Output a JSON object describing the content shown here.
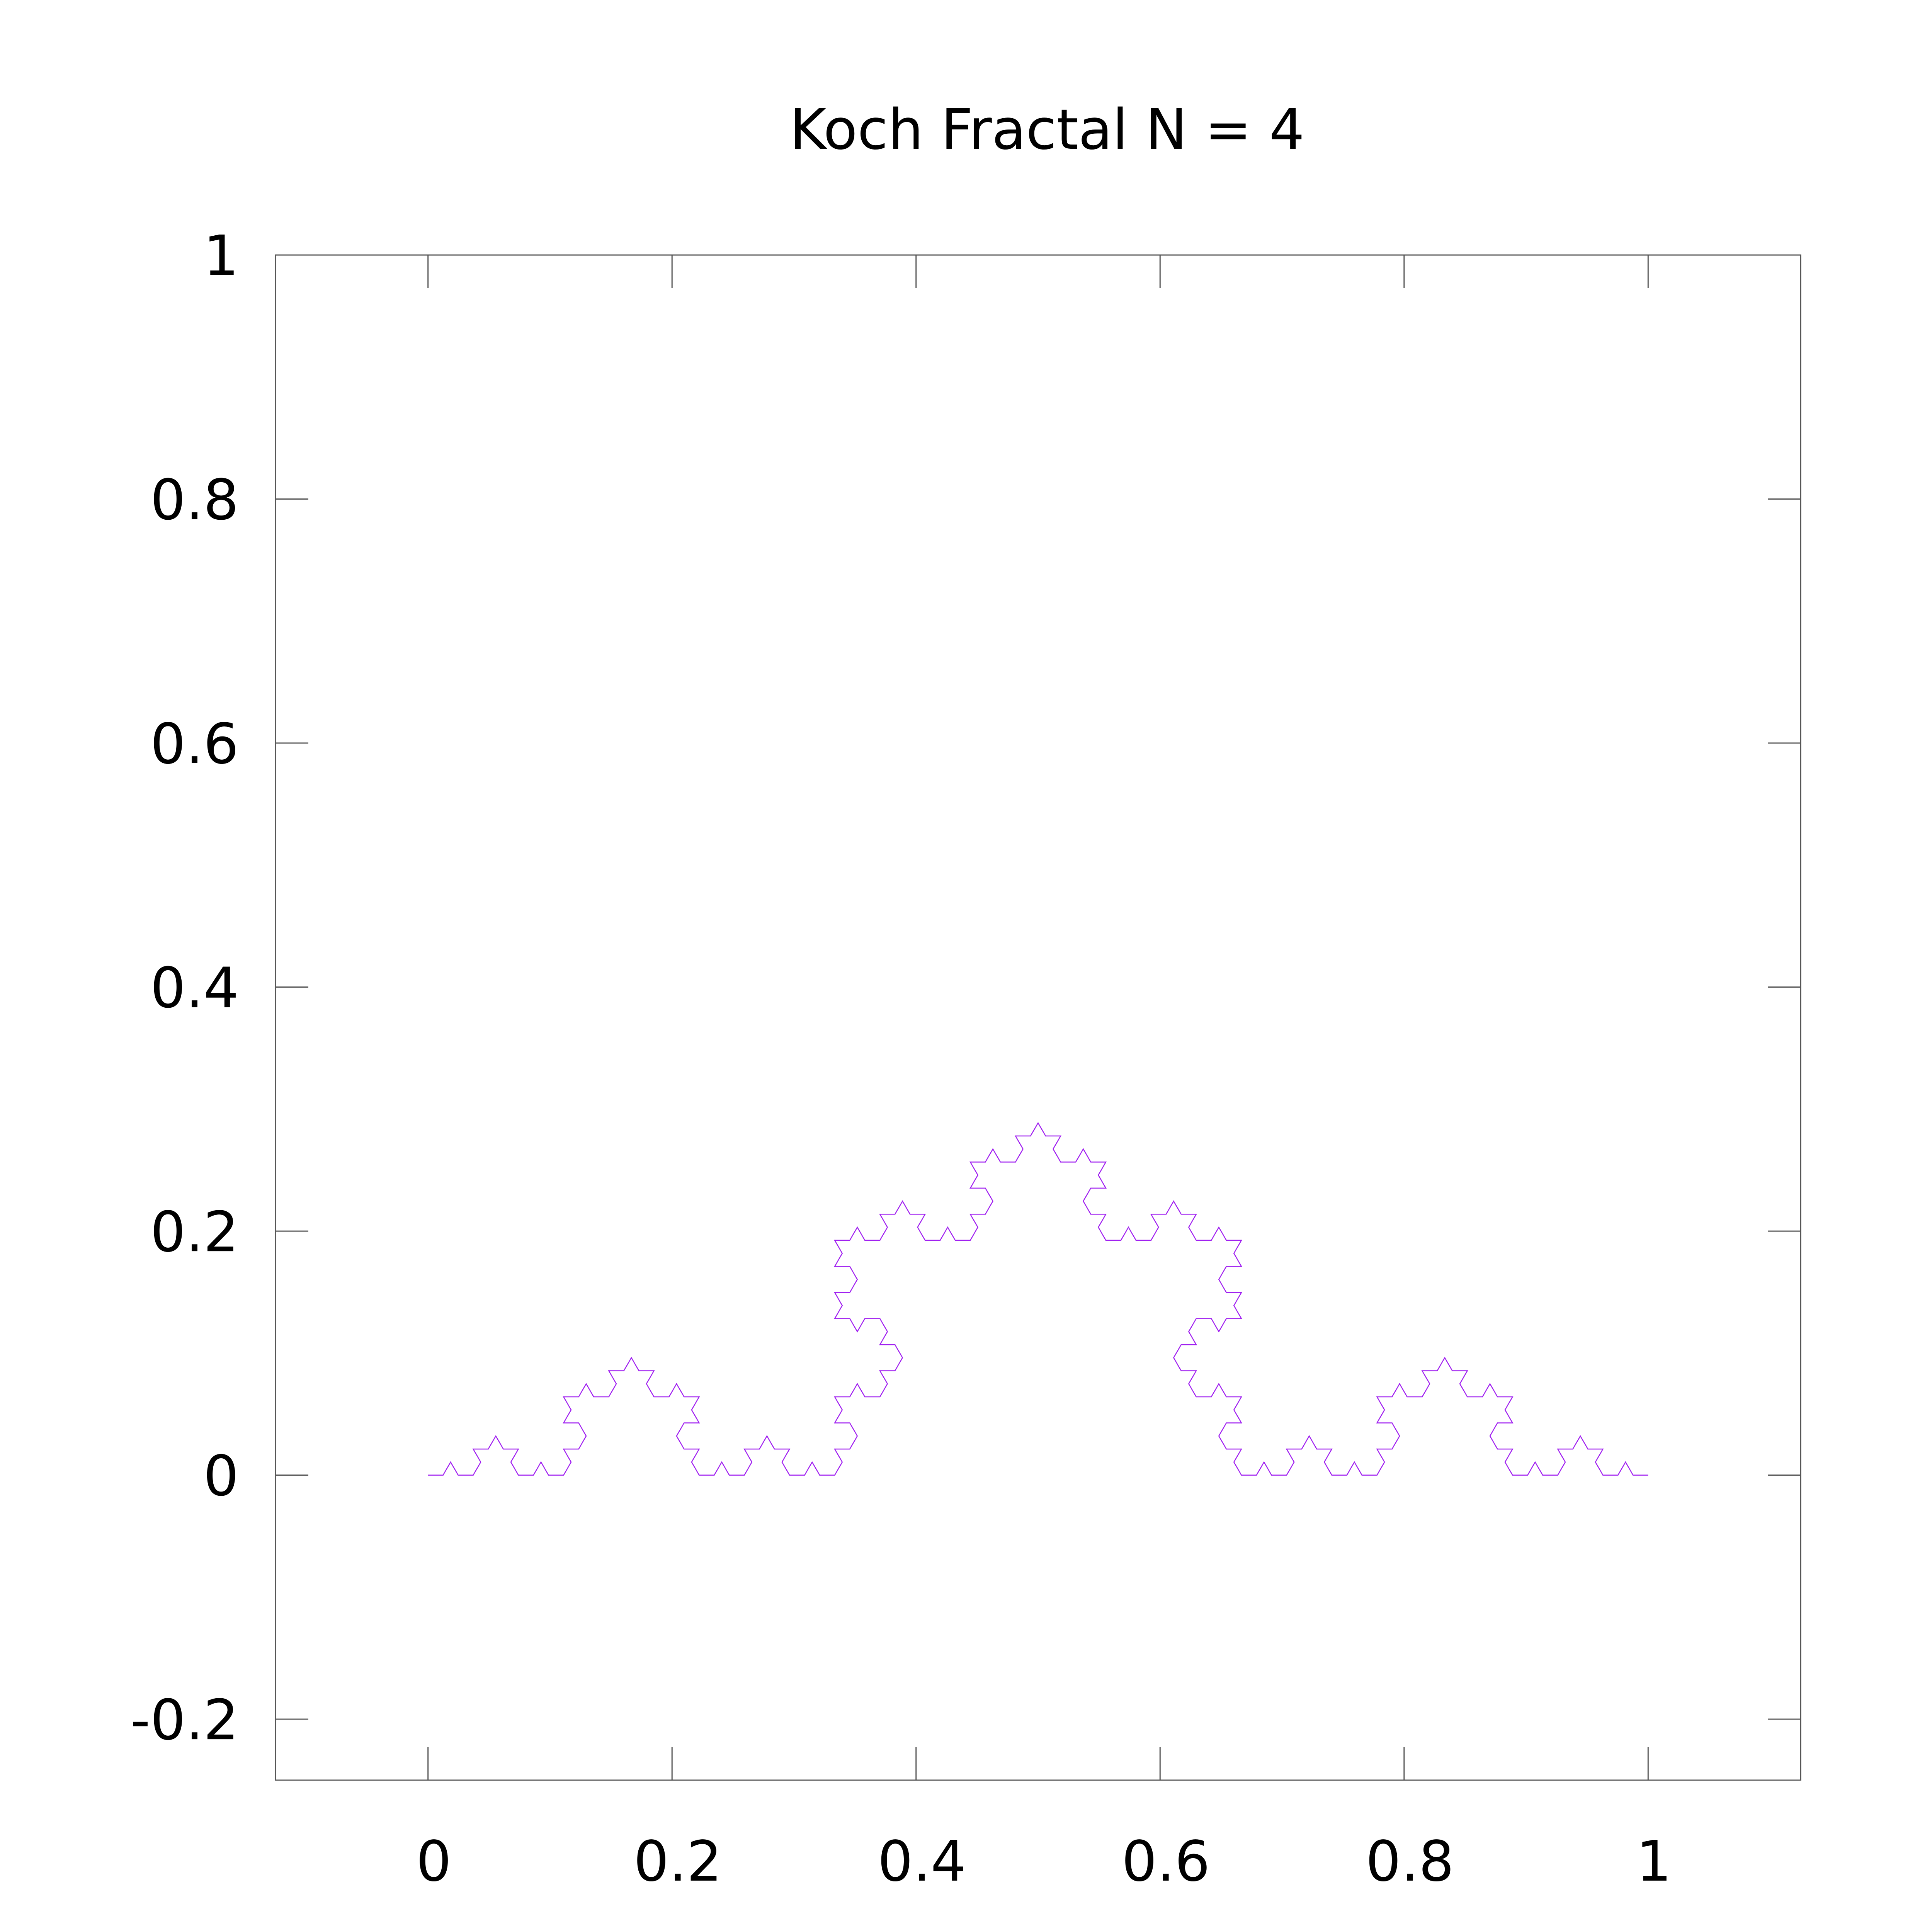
{
  "chart_data": {
    "type": "line",
    "title": "Koch Fractal N = 4",
    "xlabel": "",
    "ylabel": "",
    "xlim": [
      -0.125,
      1.125
    ],
    "ylim": [
      -0.25,
      1.0
    ],
    "x_ticks": [
      0,
      0.2,
      0.4,
      0.6,
      0.8,
      1
    ],
    "x_tick_labels": [
      "0",
      "0.2",
      "0.4",
      "0.6",
      "0.8",
      "1"
    ],
    "y_ticks": [
      -0.2,
      0,
      0.2,
      0.4,
      0.6,
      0.8,
      1
    ],
    "y_tick_labels": [
      "-0.2",
      "0",
      "0.2",
      "0.4",
      "0.6",
      "0.8",
      "1"
    ],
    "grid": false,
    "legend": "none",
    "series": [
      {
        "color": "#a020f0",
        "koch_iterations": 4,
        "start": [
          0,
          0
        ],
        "end": [
          1,
          0
        ]
      }
    ]
  }
}
